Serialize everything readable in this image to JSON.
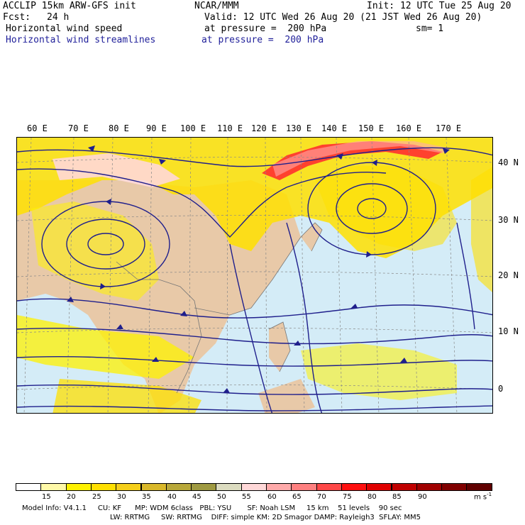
{
  "header": {
    "model": "ACCLIP 15km ARW-GFS init",
    "org": "NCAR/MMM",
    "init": "Init: 12 UTC Tue 25 Aug 20",
    "fcst_label": "Fcst:",
    "fcst_value": "24 h",
    "valid": "Valid: 12 UTC Wed 26 Aug 20 (21 JST Wed 26 Aug 20)",
    "field1": "Horizontal wind speed",
    "field1_level": "at pressure =  200 hPa",
    "sm": "sm= 1",
    "field2": "Horizontal wind streamlines",
    "field2_level": "at pressure =  200 hPa"
  },
  "longitude_labels": [
    "60 E",
    "70 E",
    "80 E",
    "90 E",
    "100 E",
    "110 E",
    "120 E",
    "130 E",
    "140 E",
    "150 E",
    "160 E",
    "170 E"
  ],
  "latitude_labels": [
    "40 N",
    "30 N",
    "20 N",
    "10 N",
    "0"
  ],
  "colorbar": {
    "ticks": [
      "15",
      "20",
      "25",
      "30",
      "35",
      "40",
      "45",
      "50",
      "55",
      "60",
      "65",
      "70",
      "75",
      "80",
      "85",
      "90"
    ],
    "unit": "m s",
    "unit_exp": "-1",
    "colors": [
      "#ffffff",
      "#fff9a8",
      "#fff200",
      "#ffe000",
      "#f5cf1a",
      "#d9b82a",
      "#b8a83a",
      "#9f9a42",
      "#dcdcc0",
      "#ffd8d8",
      "#ffaaaa",
      "#ff8080",
      "#ff4848",
      "#ff1010",
      "#e00000",
      "#c00000",
      "#a00000",
      "#800000",
      "#600000"
    ]
  },
  "footer": {
    "line1": "Model Info: V4.1.1     CU: KF      MP: WDM 6class   PBL: YSU       SF: Noah LSM     15 km    51 levels    90 sec",
    "line2": "LW: RRTMG     SW: RRTMG    DIFF: simple KM: 2D Smagor DAMP: Rayleigh3  SFLAY: MM5"
  },
  "colors": {
    "streamline": "#1f1f8c",
    "land": "#e8c9a8",
    "ocean": "#d4ecf7"
  }
}
